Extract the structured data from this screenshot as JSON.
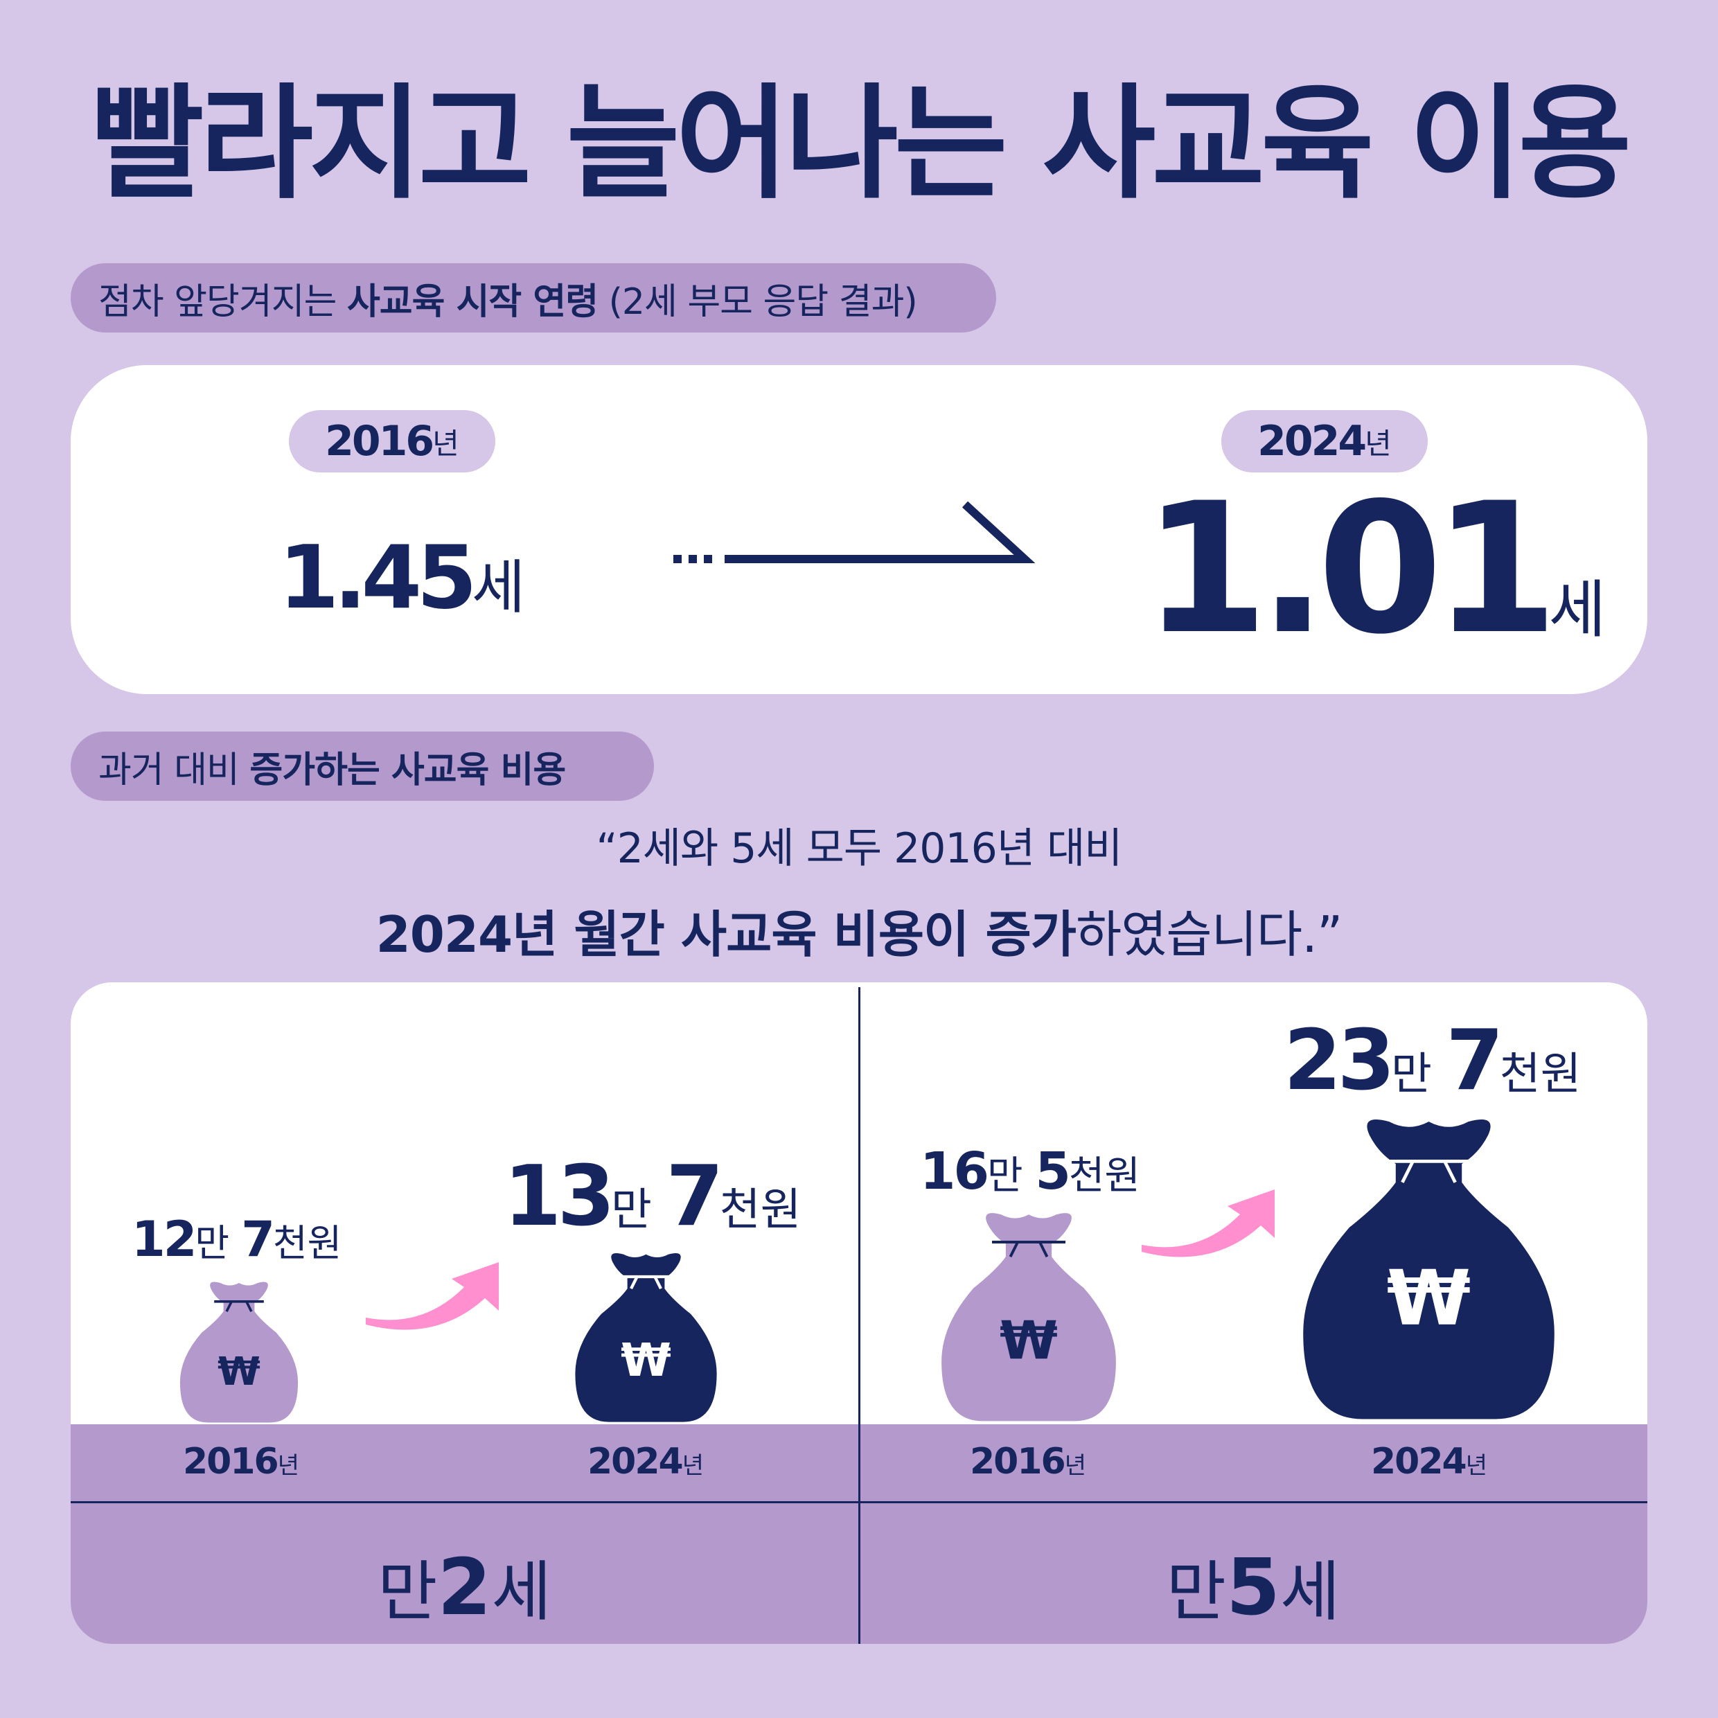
{
  "title": "빨라지고 늘어나는 사교육 이용",
  "section1": {
    "label_pre": "점차 앞당겨지는 ",
    "label_bold": "사교육 시작 연령",
    "label_post": " (2세 부모 응답 결과)",
    "left": {
      "year_num": "2016",
      "year_unit": "년",
      "age_num": "1.45",
      "age_unit": "세"
    },
    "right": {
      "year_num": "2024",
      "year_unit": "년",
      "age_num": "1.01",
      "age_unit": "세"
    }
  },
  "section2": {
    "label_pre": "과거 대비 ",
    "label_bold": "증가하는 사교육 비용",
    "quote_line1": "“2세와 5세 모두 2016년 대비",
    "quote_line2_bold": "2024년 월간 사교육 비용이 증가",
    "quote_line2_rest": "하였습니다.”",
    "won_symbol": "₩",
    "groups": [
      {
        "label_pre": "만",
        "label_num": "2",
        "label_post": "세",
        "before": {
          "year_num": "2016",
          "year_unit": "년",
          "amt1": "12",
          "u1": "만 ",
          "amt2": "7",
          "u2": "천원",
          "value_won": 127000
        },
        "after": {
          "year_num": "2024",
          "year_unit": "년",
          "amt1": "13",
          "u1": "만 ",
          "amt2": "7",
          "u2": "천원",
          "value_won": 137000
        }
      },
      {
        "label_pre": "만",
        "label_num": "5",
        "label_post": "세",
        "before": {
          "year_num": "2016",
          "year_unit": "년",
          "amt1": "16",
          "u1": "만 ",
          "amt2": "5",
          "u2": "천원",
          "value_won": 165000
        },
        "after": {
          "year_num": "2024",
          "year_unit": "년",
          "amt1": "23",
          "u1": "만 ",
          "amt2": "7",
          "u2": "천원",
          "value_won": 237000
        }
      }
    ]
  },
  "colors": {
    "background": "#d6c6e7",
    "navy": "#17255f",
    "purple": "#b499cd",
    "pink": "#ff8fcf",
    "white": "#ffffff"
  }
}
